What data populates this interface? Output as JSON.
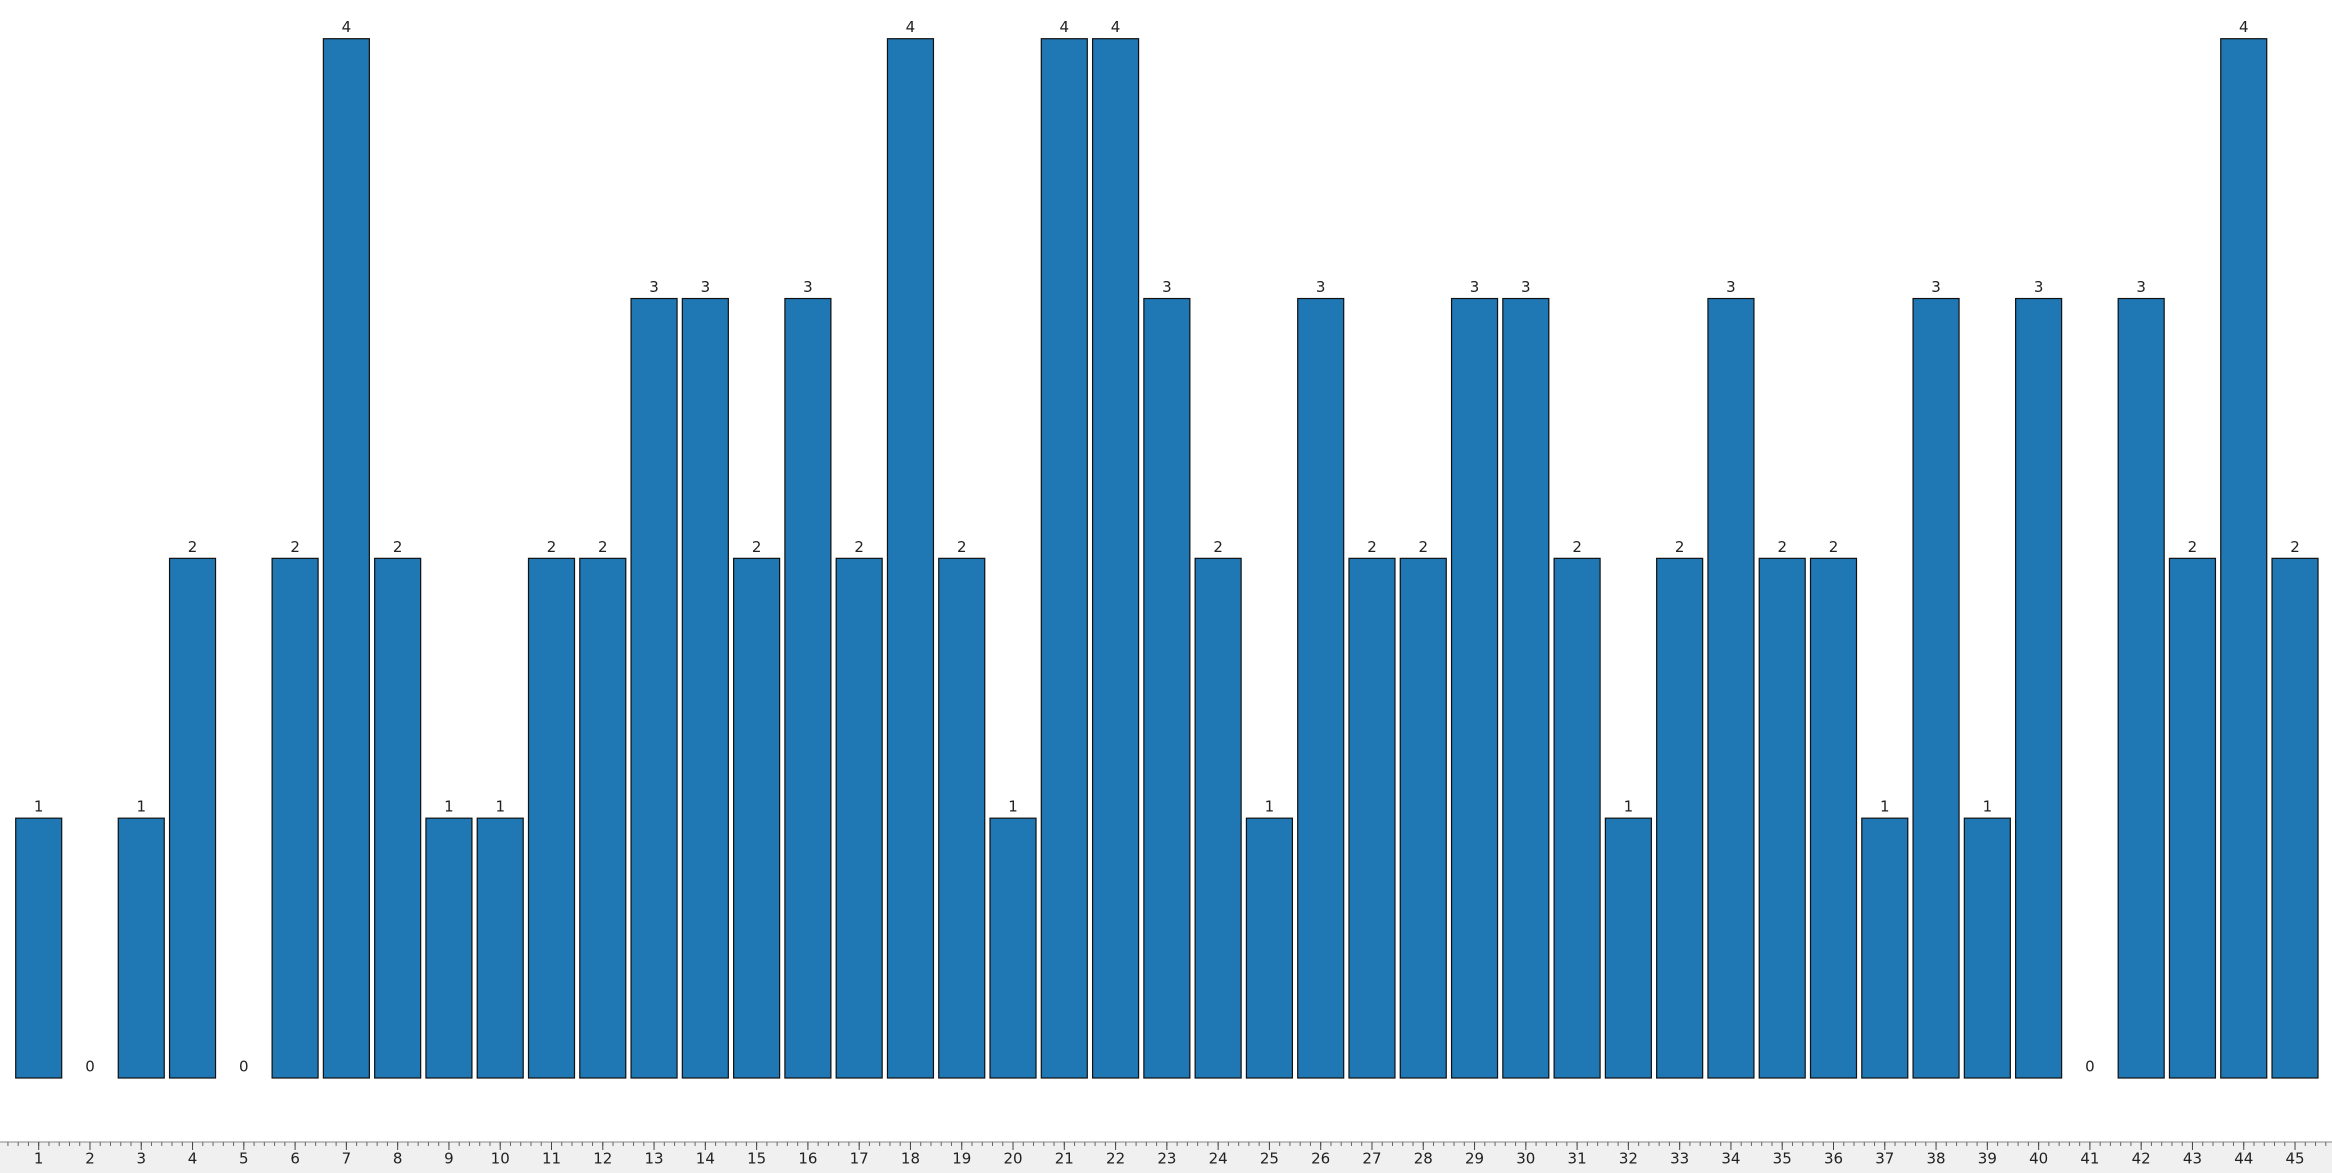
{
  "chart_data": {
    "type": "bar",
    "categories": [
      "1",
      "2",
      "3",
      "4",
      "5",
      "6",
      "7",
      "8",
      "9",
      "10",
      "11",
      "12",
      "13",
      "14",
      "15",
      "16",
      "17",
      "18",
      "19",
      "20",
      "21",
      "22",
      "23",
      "24",
      "25",
      "26",
      "27",
      "28",
      "29",
      "30",
      "31",
      "32",
      "33",
      "34",
      "35",
      "36",
      "37",
      "38",
      "39",
      "40",
      "41",
      "42",
      "43",
      "44",
      "45"
    ],
    "values": [
      1,
      0,
      1,
      2,
      0,
      2,
      4,
      2,
      1,
      1,
      2,
      2,
      3,
      3,
      2,
      3,
      2,
      4,
      2,
      1,
      4,
      4,
      3,
      2,
      1,
      3,
      2,
      2,
      3,
      3,
      2,
      1,
      2,
      3,
      2,
      2,
      1,
      3,
      1,
      3,
      0,
      3,
      2,
      4,
      2
    ],
    "color": "#1f77b4",
    "ylim": [
      0,
      4
    ],
    "grid": false
  }
}
